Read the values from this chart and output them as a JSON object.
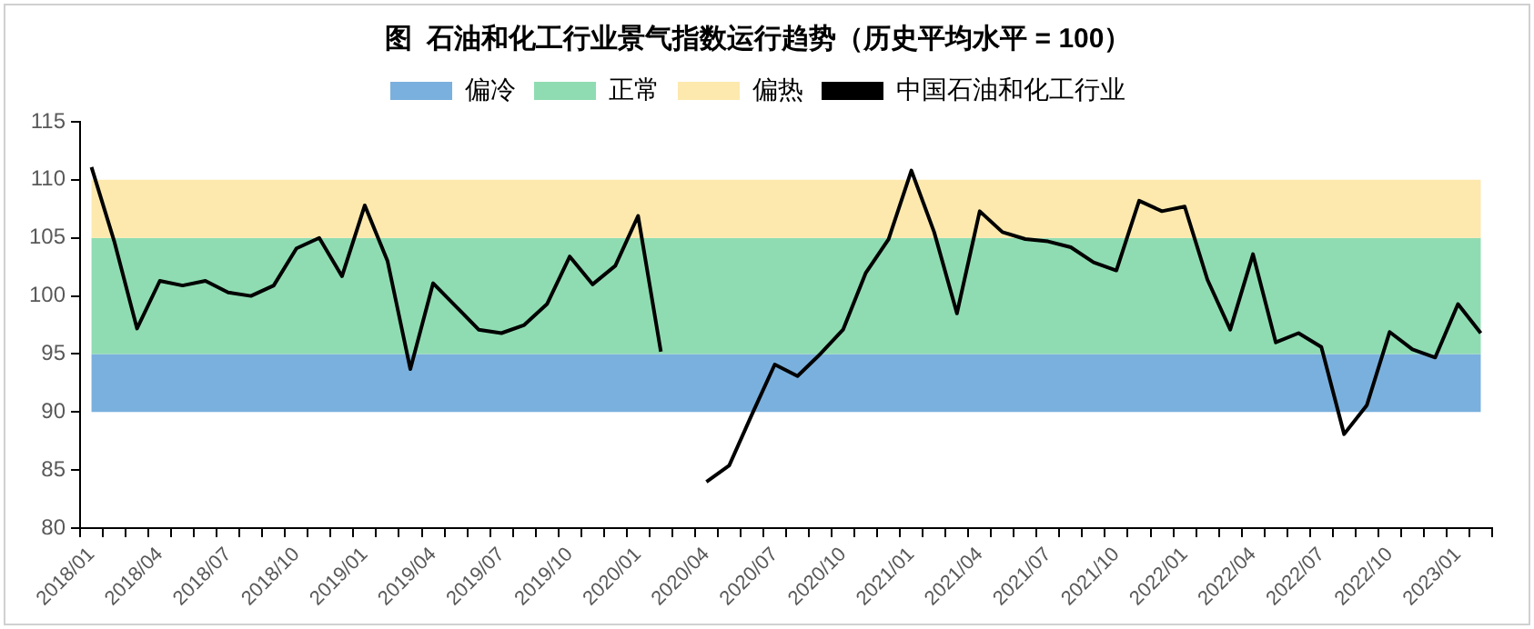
{
  "chart_data": {
    "type": "line",
    "title": "图  石油和化工行业景气指数运行趋势（历史平均水平 = 100）",
    "categories": [
      "2018/01",
      null,
      null,
      "2018/04",
      null,
      null,
      "2018/07",
      null,
      null,
      "2018/10",
      null,
      null,
      "2019/01",
      null,
      null,
      "2019/04",
      null,
      null,
      "2019/07",
      null,
      null,
      "2019/10",
      null,
      null,
      "2020/01",
      null,
      null,
      "2020/04",
      null,
      null,
      "2020/07",
      null,
      null,
      "2020/10",
      null,
      null,
      "2021/01",
      null,
      null,
      "2021/04",
      null,
      null,
      "2021/07",
      null,
      null,
      "2021/10",
      null,
      null,
      "2022/01",
      null,
      null,
      "2022/04",
      null,
      null,
      "2022/07",
      null,
      null,
      "2022/10",
      null,
      null,
      "2023/01",
      null
    ],
    "series": [
      {
        "name": "中国石油和化工行业",
        "color": "#000000",
        "values": [
          111.1,
          104.7,
          97.2,
          101.3,
          100.9,
          101.3,
          100.3,
          100.0,
          100.9,
          104.1,
          105.0,
          101.7,
          107.8,
          103.0,
          93.7,
          101.1,
          99.1,
          97.1,
          96.8,
          97.5,
          99.3,
          103.4,
          101.0,
          102.6,
          106.9,
          95.2,
          null,
          84.0,
          85.4,
          89.8,
          94.1,
          93.1,
          95.0,
          97.1,
          102.0,
          104.9,
          110.8,
          105.5,
          98.5,
          107.3,
          105.5,
          104.9,
          104.7,
          104.2,
          102.9,
          102.2,
          108.2,
          107.3,
          107.7,
          101.4,
          97.1,
          103.6,
          96.0,
          96.8,
          95.6,
          88.1,
          90.6,
          96.9,
          95.4,
          94.7,
          99.3,
          96.8
        ]
      }
    ],
    "bands": [
      {
        "axis": "y",
        "from": 90,
        "to": 95,
        "label": "偏冷",
        "color": "#7ab0dd"
      },
      {
        "axis": "y",
        "from": 95,
        "to": 105,
        "label": "正常",
        "color": "#8fdcb2"
      },
      {
        "axis": "y",
        "from": 105,
        "to": 110,
        "label": "偏热",
        "color": "#fde9ae"
      }
    ],
    "ylim": [
      80,
      115
    ],
    "yticks": [
      80,
      85,
      90,
      95,
      100,
      105,
      110,
      115
    ],
    "legend": "top"
  }
}
